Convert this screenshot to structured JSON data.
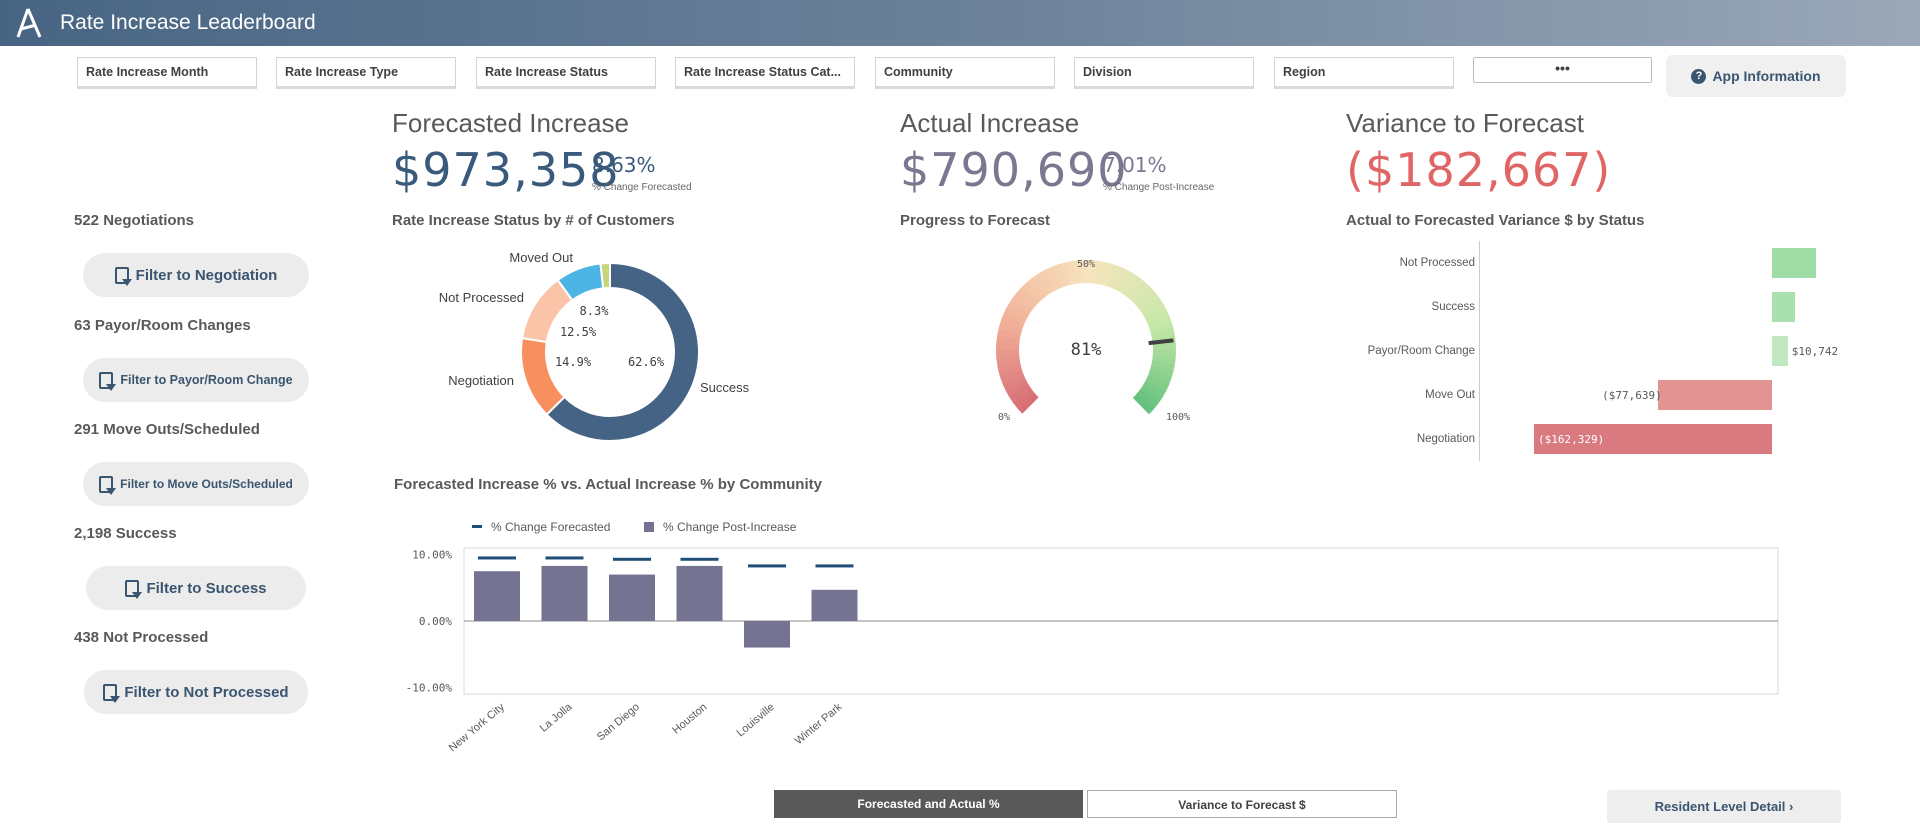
{
  "app": {
    "title": "Rate Increase Leaderboard"
  },
  "filters": [
    "Rate Increase Month",
    "Rate Increase Type",
    "Rate Increase Status",
    "Rate Increase Status Cat...",
    "Community",
    "Division",
    "Region"
  ],
  "toolbar": {
    "more_label": "•••",
    "app_info_label": "App Information"
  },
  "kpis": {
    "forecasted": {
      "label": "Forecasted Increase",
      "value": "$973,358",
      "pct": "8.63%",
      "sub": "% Change Forecasted",
      "color": "#3a5a7c"
    },
    "actual": {
      "label": "Actual Increase",
      "value": "$790,690",
      "pct": "7.01%",
      "sub": "% Change Post-Increase",
      "color": "#7a7890"
    },
    "variance": {
      "label": "Variance to Forecast",
      "value": "($182,667)",
      "color": "#e06666"
    }
  },
  "sidebar": [
    {
      "label": "522 Negotiations",
      "button": "Filter to Negotiation"
    },
    {
      "label": "63 Payor/Room Changes",
      "button": "Filter to Payor/Room Change"
    },
    {
      "label": "291 Move Outs/Scheduled",
      "button": "Filter to Move Outs/Scheduled"
    },
    {
      "label": "2,198 Success",
      "button": "Filter to Success"
    },
    {
      "label": "438 Not Processed",
      "button": "Filter to Not Processed"
    }
  ],
  "donut": {
    "title": "Rate Increase Status by # of Customers",
    "segments": [
      {
        "name": "Success",
        "value": 62.6,
        "label": "62.6%",
        "color": "#456385"
      },
      {
        "name": "Negotiation",
        "value": 14.9,
        "label": "14.9%",
        "color": "#f78f5e"
      },
      {
        "name": "Not Processed",
        "value": 12.5,
        "label": "12.5%",
        "color": "#fbc3a8"
      },
      {
        "name": "Moved Out",
        "value": 8.3,
        "label": "8.3%",
        "color": "#4cb5e6"
      },
      {
        "name": "Payor/Room Change",
        "value": 1.7,
        "label": "",
        "color": "#c8d57a"
      }
    ]
  },
  "gauge": {
    "title": "Progress to Forecast",
    "value": 0.81,
    "value_label": "81%",
    "min_label": "0%",
    "mid_label": "50%",
    "max_label": "100%"
  },
  "variance_chart": {
    "title": "Actual to Forecasted Variance $ by Status",
    "bars": [
      {
        "name": "Not Processed",
        "value": 30000,
        "label": "",
        "color": "#9fdca6"
      },
      {
        "name": "Success",
        "value": 16000,
        "label": "",
        "color": "#a9e0ae"
      },
      {
        "name": "Payor/Room Change",
        "value": 10742,
        "label": "$10,742",
        "color": "#c2e8c2"
      },
      {
        "name": "Move Out",
        "value": -77639,
        "label": "($77,639)",
        "color": "#e29492"
      },
      {
        "name": "Negotiation",
        "value": -162329,
        "label": "($162,329)",
        "color": "#d97a80"
      }
    ]
  },
  "chart_data": {
    "type": "bar",
    "title": "Forecasted Increase % vs. Actual Increase % by Community",
    "categories": [
      "New York City",
      "La Jolla",
      "San Diego",
      "Houston",
      "Louisville",
      "Winter Park"
    ],
    "series": [
      {
        "name": "% Change Forecasted",
        "type": "marker",
        "values": [
          9.5,
          9.5,
          9.3,
          9.3,
          8.3,
          8.3
        ],
        "color": "#1f4e79"
      },
      {
        "name": "% Change Post-Increase",
        "type": "bar",
        "values": [
          7.5,
          8.3,
          7.0,
          8.3,
          -4.0,
          4.7
        ],
        "color": "#747391"
      }
    ],
    "yticks": [
      "10.00%",
      "0.00%",
      "-10.00%"
    ],
    "ylim": [
      -11,
      11
    ]
  },
  "bottom_bar": {
    "tab_active": "Forecasted and Actual %",
    "tab_inactive": "Variance to Forecast $",
    "resident_btn": "Resident Level Detail"
  }
}
